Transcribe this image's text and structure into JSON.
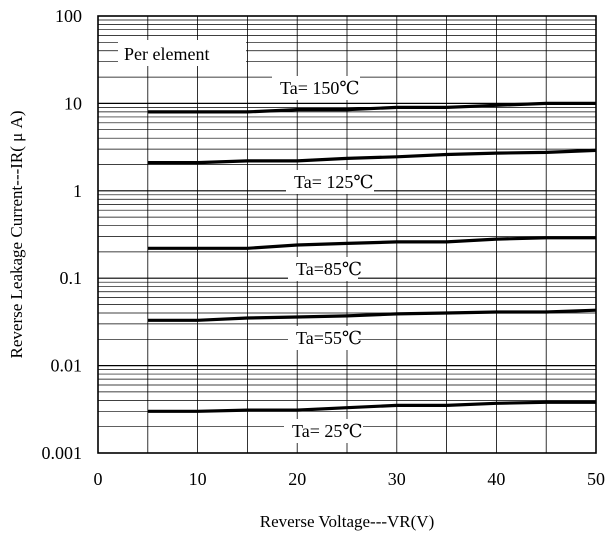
{
  "chart_data": {
    "type": "line",
    "title": "",
    "xlabel": "Reverse Voltage---VR(V)",
    "ylabel": "Reverse Leakage Current---IR( μ A)",
    "x_scale": "linear",
    "y_scale": "log",
    "xlim": [
      0,
      50
    ],
    "ylim": [
      0.001,
      100
    ],
    "x_ticks": [
      "0",
      "10",
      "20",
      "30",
      "40",
      "50"
    ],
    "y_ticks": [
      "0.001",
      "0.01",
      "0.1",
      "1",
      "10",
      "100"
    ],
    "grid": true,
    "annotation": "Per element",
    "line_color": "#000000",
    "series": [
      {
        "name": "Ta= 150℃",
        "x": [
          5,
          10,
          15,
          20,
          25,
          30,
          35,
          40,
          45,
          50
        ],
        "values": [
          8.0,
          8.0,
          8.0,
          8.5,
          8.5,
          9.0,
          9.0,
          9.5,
          10.0,
          10.0
        ]
      },
      {
        "name": "Ta= 125℃",
        "x": [
          5,
          10,
          15,
          20,
          25,
          30,
          35,
          40,
          45,
          50
        ],
        "values": [
          2.1,
          2.1,
          2.2,
          2.2,
          2.35,
          2.45,
          2.6,
          2.7,
          2.75,
          2.9
        ]
      },
      {
        "name": "Ta=85℃",
        "x": [
          5,
          10,
          15,
          20,
          25,
          30,
          35,
          40,
          45,
          50
        ],
        "values": [
          0.22,
          0.22,
          0.22,
          0.24,
          0.25,
          0.26,
          0.26,
          0.28,
          0.29,
          0.29
        ]
      },
      {
        "name": "Ta=55℃",
        "x": [
          5,
          10,
          15,
          20,
          25,
          30,
          35,
          40,
          45,
          50
        ],
        "values": [
          0.033,
          0.033,
          0.035,
          0.036,
          0.037,
          0.039,
          0.04,
          0.041,
          0.041,
          0.043
        ]
      },
      {
        "name": "Ta= 25℃",
        "x": [
          5,
          10,
          15,
          20,
          25,
          30,
          35,
          40,
          45,
          50
        ],
        "values": [
          0.003,
          0.003,
          0.0031,
          0.0031,
          0.0033,
          0.0035,
          0.0035,
          0.0037,
          0.0038,
          0.0038
        ]
      }
    ]
  }
}
